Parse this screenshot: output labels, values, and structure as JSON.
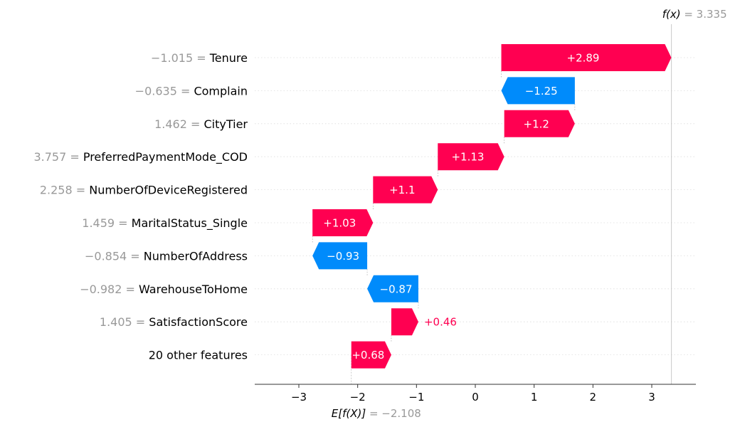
{
  "chart_data": {
    "type": "waterfall",
    "fx_label": "f(x)",
    "fx_value_text": "= 3.335",
    "fx": 3.335,
    "base_label": "E[f(X)]",
    "base_value_text": "= −2.108",
    "base": -2.108,
    "xlim": [
      -3.75,
      3.75
    ],
    "xticks": [
      {
        "v": -3,
        "t": "−3"
      },
      {
        "v": -2,
        "t": "−2"
      },
      {
        "v": -1,
        "t": "−1"
      },
      {
        "v": 0,
        "t": "0"
      },
      {
        "v": 1,
        "t": "1"
      },
      {
        "v": 2,
        "t": "2"
      },
      {
        "v": 3,
        "t": "3"
      }
    ],
    "features": [
      {
        "value": "−1.015 =",
        "name": "Tenure",
        "contribution": 2.89,
        "label": "+2.89"
      },
      {
        "value": "−0.635 =",
        "name": "Complain",
        "contribution": -1.25,
        "label": "−1.25"
      },
      {
        "value": "1.462 =",
        "name": "CityTier",
        "contribution": 1.2,
        "label": "+1.2"
      },
      {
        "value": "3.757 =",
        "name": "PreferredPaymentMode_COD",
        "contribution": 1.13,
        "label": "+1.13"
      },
      {
        "value": "2.258 =",
        "name": "NumberOfDeviceRegistered",
        "contribution": 1.1,
        "label": "+1.1"
      },
      {
        "value": "1.459 =",
        "name": "MaritalStatus_Single",
        "contribution": 1.03,
        "label": "+1.03"
      },
      {
        "value": "−0.854 =",
        "name": "NumberOfAddress",
        "contribution": -0.93,
        "label": "−0.93"
      },
      {
        "value": "−0.982 =",
        "name": "WarehouseToHome",
        "contribution": -0.87,
        "label": "−0.87"
      },
      {
        "value": "1.405 =",
        "name": "SatisfactionScore",
        "contribution": 0.46,
        "label": "+0.46"
      },
      {
        "value": "",
        "name": "20 other features",
        "contribution": 0.68,
        "label": "+0.68"
      }
    ],
    "colors": {
      "positive": "#ff0051",
      "negative": "#008bfb",
      "muted": "#999999"
    }
  }
}
